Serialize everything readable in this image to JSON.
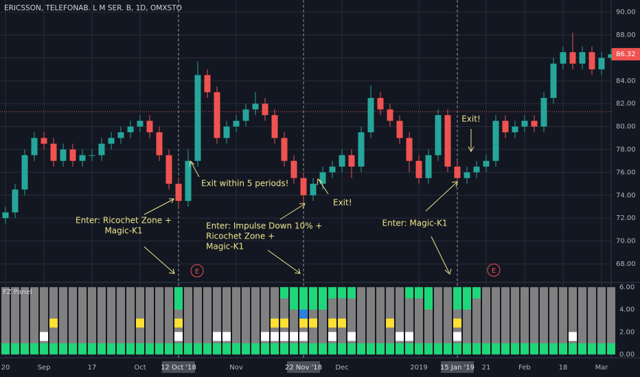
{
  "chart_data": {
    "type": "candlestick",
    "title": "ERICSSON, TELEFONAB. L M SER. B, 1D, OMXSTO",
    "categories": [
      "20",
      null,
      null,
      null,
      "Sep",
      null,
      null,
      null,
      null,
      "17",
      null,
      null,
      null,
      null,
      "Oct",
      null,
      null,
      null,
      "12 Oct '18",
      null,
      null,
      null,
      null,
      null,
      "Nov",
      null,
      null,
      null,
      null,
      null,
      null,
      "22 Nov '18",
      null,
      null,
      null,
      "Dec",
      null,
      null,
      null,
      null,
      null,
      null,
      null,
      "2019",
      null,
      null,
      null,
      "15 Jan '19",
      null,
      null,
      "21",
      null,
      null,
      null,
      "Feb",
      null,
      null,
      null,
      "18",
      null,
      null,
      null,
      "Mar",
      null
    ],
    "highlight_labels": [
      "12 Oct '18",
      "22 Nov '18",
      "15 Jan '19"
    ],
    "open": [
      72,
      72.5,
      74.5,
      77.5,
      79,
      78.5,
      77,
      78,
      77,
      77.5,
      77.5,
      78.5,
      79,
      79.5,
      80,
      80.5,
      79.5,
      77.5,
      75,
      73.5,
      77,
      84.5,
      83,
      79,
      80,
      80.5,
      81.5,
      82,
      81,
      79,
      77,
      75.5,
      74,
      75,
      76,
      76.5,
      77.5,
      76.5,
      79.5,
      82.5,
      81.5,
      80.5,
      79,
      77,
      75.5,
      77.5,
      81,
      76.5,
      75.5,
      76,
      76.5,
      77,
      80.5,
      79.5,
      80,
      80.5,
      80,
      82.5,
      85.5,
      86.5,
      85.5,
      86.5,
      85,
      86
    ],
    "high": [
      73,
      75,
      78,
      79.5,
      79.5,
      79,
      78.5,
      78.5,
      78,
      78,
      79,
      79.5,
      80,
      80.5,
      81,
      81,
      80,
      78,
      75.5,
      78,
      85.7,
      85,
      83.5,
      80.5,
      81,
      82,
      83,
      82.5,
      81.5,
      79.5,
      77.5,
      76,
      75.5,
      76.5,
      77,
      78,
      78,
      80,
      83.6,
      83,
      82,
      81,
      79.5,
      77.5,
      78,
      81.5,
      81.5,
      77,
      76.5,
      77,
      77.5,
      81,
      81,
      80.5,
      81,
      81,
      83,
      86,
      87,
      88.2,
      87,
      87,
      86.5,
      86.8
    ],
    "low": [
      71.5,
      72,
      74,
      77,
      78,
      76.5,
      76.5,
      76.5,
      76.5,
      77,
      77,
      78,
      78.5,
      79,
      79.5,
      79,
      77,
      74.5,
      72.8,
      73,
      76.5,
      82.5,
      78.5,
      78.5,
      79.5,
      80,
      81,
      80.5,
      78.5,
      76.5,
      75,
      73.2,
      73.5,
      74.5,
      75.5,
      76,
      75.5,
      76,
      79,
      81,
      80,
      78.5,
      76,
      75,
      75,
      77,
      76,
      75,
      75,
      75.5,
      76,
      76.5,
      79,
      79,
      79.5,
      79.5,
      79.5,
      82,
      85,
      85,
      85,
      84.5,
      84.5,
      85.8
    ],
    "close": [
      72.5,
      74.5,
      77.5,
      79,
      78.5,
      77,
      78,
      77,
      77.5,
      77.5,
      78.5,
      79,
      79.5,
      80,
      80.5,
      79.5,
      77.5,
      75,
      73.5,
      77,
      84.5,
      83,
      79,
      80,
      80.5,
      81.5,
      82,
      81,
      79,
      77,
      75.5,
      74,
      75,
      76,
      76.5,
      77.5,
      76.5,
      79.5,
      82.5,
      81.5,
      80.5,
      79,
      77,
      75.5,
      77.5,
      81,
      76.5,
      75.5,
      76,
      76.5,
      77,
      80.5,
      79.5,
      80,
      80.5,
      80,
      82.5,
      85.5,
      86.5,
      85.5,
      86.5,
      85,
      86,
      86.32
    ],
    "up_color": "#26a69a",
    "down_color": "#ef5350",
    "ylim": [
      66.8,
      91.06
    ],
    "yticks": [
      {
        "value": 68,
        "label": "68.00"
      },
      {
        "value": 70,
        "label": "70.00"
      },
      {
        "value": 72,
        "label": "72.00"
      },
      {
        "value": 74,
        "label": "74.00"
      },
      {
        "value": 76,
        "label": "76.00"
      },
      {
        "value": 78,
        "label": "78.00"
      },
      {
        "value": 80,
        "label": "80.00"
      },
      {
        "value": 82,
        "label": "82.00"
      },
      {
        "value": 84,
        "label": "84.00"
      },
      {
        "value": 86,
        "label": "86.00"
      },
      {
        "value": 88,
        "label": "88.00"
      },
      {
        "value": 90,
        "label": "90.00"
      }
    ],
    "last_price": 86.32,
    "reference_line": 81.3,
    "grid": true,
    "annotations": [
      [
        "Enter: Ricochet Zone +",
        "Magic-K1"
      ],
      [
        "Exit within 5 periods!"
      ],
      [
        "Enter: Impulse Down 10% +",
        "Ricochet Zone +",
        "Magic-K1"
      ],
      [
        "Exit!"
      ],
      [
        "Enter: Magic-K1"
      ],
      [
        "Exit!"
      ]
    ],
    "event_labels": [
      "E",
      "E"
    ],
    "panel": {
      "title": "FZ Panel",
      "ylim": [
        -0.3,
        6.3
      ],
      "yticks": [
        {
          "value": 0,
          "label": "0.00"
        },
        {
          "value": 2,
          "label": "2.00"
        },
        {
          "value": 4,
          "label": "4.00"
        },
        {
          "value": 6,
          "label": "6.00"
        }
      ],
      "series": [
        {
          "name": "base",
          "color": "#1fd67a",
          "values": [
            1,
            1,
            1,
            1,
            1,
            1,
            1,
            1,
            1,
            1,
            1,
            1,
            1,
            1,
            1,
            1,
            1,
            1,
            1,
            1,
            1,
            1,
            1,
            1,
            1,
            1,
            1,
            1,
            1,
            1,
            1,
            1,
            1,
            1,
            1,
            1,
            1,
            1,
            1,
            1,
            1,
            1,
            1,
            1,
            1,
            1,
            1,
            1,
            1,
            1,
            1,
            1,
            1,
            1,
            1,
            1,
            1,
            1,
            1,
            1,
            1,
            1,
            1,
            1
          ]
        },
        {
          "name": "white",
          "color": "#ffffff",
          "values": [
            null,
            null,
            null,
            null,
            2,
            null,
            null,
            null,
            null,
            null,
            null,
            null,
            null,
            null,
            null,
            null,
            null,
            null,
            2,
            null,
            null,
            null,
            2,
            2,
            null,
            null,
            null,
            2,
            2,
            2,
            2,
            2,
            null,
            null,
            2,
            null,
            2,
            null,
            null,
            null,
            null,
            2,
            2,
            null,
            null,
            null,
            null,
            2,
            null,
            null,
            null,
            null,
            null,
            null,
            null,
            null,
            null,
            null,
            null,
            2,
            null,
            null,
            null,
            null
          ]
        },
        {
          "name": "yellow",
          "color": "#ffe033",
          "values": [
            null,
            null,
            null,
            null,
            null,
            3.2,
            null,
            null,
            null,
            null,
            null,
            null,
            null,
            null,
            3.2,
            null,
            null,
            null,
            3.2,
            null,
            null,
            null,
            null,
            null,
            null,
            null,
            null,
            null,
            3.2,
            3.2,
            null,
            3.2,
            3.2,
            null,
            3.2,
            3.2,
            null,
            null,
            null,
            null,
            3.2,
            null,
            null,
            null,
            null,
            null,
            null,
            3.2,
            null,
            null,
            null,
            null,
            null,
            null,
            null,
            null,
            null,
            null,
            null,
            null,
            null,
            null,
            null,
            null
          ]
        },
        {
          "name": "blue",
          "color": "#2f7fe0",
          "values": [
            null,
            null,
            null,
            null,
            null,
            null,
            null,
            null,
            null,
            null,
            null,
            null,
            null,
            null,
            null,
            null,
            null,
            null,
            null,
            null,
            null,
            null,
            null,
            null,
            null,
            null,
            null,
            null,
            null,
            null,
            null,
            4,
            null,
            null,
            null,
            null,
            null,
            null,
            null,
            null,
            null,
            null,
            null,
            null,
            null,
            null,
            null,
            null,
            null,
            null,
            null,
            null,
            null,
            null,
            null,
            null,
            null,
            null,
            null,
            null,
            null,
            null,
            null,
            null
          ]
        },
        {
          "name": "top",
          "color": "#1fd67a",
          "values": [
            null,
            null,
            null,
            null,
            null,
            null,
            null,
            null,
            null,
            null,
            null,
            null,
            null,
            null,
            null,
            null,
            null,
            null,
            4,
            null,
            null,
            null,
            null,
            null,
            null,
            null,
            null,
            null,
            null,
            5,
            4,
            4,
            4,
            4,
            5,
            5,
            5,
            null,
            null,
            null,
            null,
            null,
            5,
            5,
            4,
            null,
            null,
            4,
            4,
            5,
            null,
            null,
            null,
            null,
            null,
            null,
            null,
            null,
            null,
            null,
            null,
            null,
            null,
            null
          ]
        }
      ]
    }
  }
}
